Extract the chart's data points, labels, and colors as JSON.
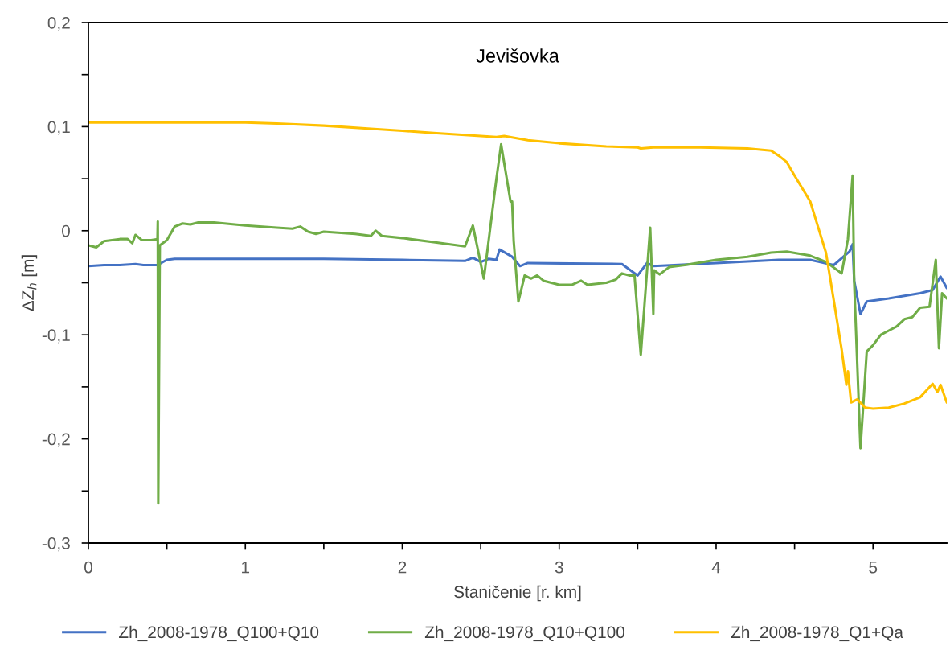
{
  "chart_data": {
    "type": "line",
    "title": "Jevišovka",
    "xlabel": "Staničenie [r. km]",
    "ylabel": "ΔZ$_{h}$ [m]",
    "xlim": [
      0,
      5.47
    ],
    "ylim": [
      -0.3,
      0.2
    ],
    "xticks": [
      0,
      {
        "value": 0.5,
        "label": null
      },
      1,
      {
        "value": 1.5,
        "label": null
      },
      2,
      {
        "value": 2.5,
        "label": null
      },
      3,
      {
        "value": 3.5,
        "label": null
      },
      4,
      {
        "value": 4.5,
        "label": null
      },
      5
    ],
    "yticks": [
      {
        "value": -0.3,
        "label": "-0,3"
      },
      {
        "value": -0.25,
        "label": null
      },
      {
        "value": -0.2,
        "label": "-0,2"
      },
      {
        "value": -0.15,
        "label": null
      },
      {
        "value": -0.1,
        "label": "-0,1"
      },
      {
        "value": -0.05,
        "label": null
      },
      0,
      {
        "value": 0.05,
        "label": null
      },
      {
        "value": 0.1,
        "label": "0,1"
      },
      {
        "value": 0.15,
        "label": null
      },
      {
        "value": 0.2,
        "label": "0,2"
      }
    ],
    "grid": false,
    "legend": "bottom",
    "marker": "none",
    "line_style": "solid",
    "series": [
      {
        "name": "Zh_2008-1978_Q100+Q10",
        "color": "#4472c4",
        "x": [
          0,
          0.1,
          0.2,
          0.3,
          0.35,
          0.44,
          0.5,
          0.55,
          1.0,
          1.5,
          2.0,
          2.4,
          2.45,
          2.5,
          2.55,
          2.6,
          2.62,
          2.7,
          2.75,
          2.8,
          3.4,
          3.5,
          3.56,
          3.6,
          4.0,
          4.4,
          4.6,
          4.75,
          4.85,
          4.87,
          4.88,
          4.92,
          4.96,
          5.1,
          5.3,
          5.38,
          5.43,
          5.47
        ],
        "values": [
          -0.034,
          -0.033,
          -0.033,
          -0.032,
          -0.033,
          -0.033,
          -0.028,
          -0.027,
          -0.027,
          -0.027,
          -0.028,
          -0.029,
          -0.026,
          -0.03,
          -0.027,
          -0.028,
          -0.018,
          -0.025,
          -0.034,
          -0.031,
          -0.032,
          -0.043,
          -0.031,
          -0.034,
          -0.031,
          -0.028,
          -0.028,
          -0.033,
          -0.02,
          -0.013,
          -0.048,
          -0.08,
          -0.068,
          -0.065,
          -0.06,
          -0.057,
          -0.044,
          -0.055
        ]
      },
      {
        "name": "Zh_2008-1978_Q10+Q100",
        "color": "#70ad47",
        "x": [
          0,
          0.05,
          0.1,
          0.2,
          0.25,
          0.28,
          0.3,
          0.34,
          0.4,
          0.44,
          0.442,
          0.445,
          0.455,
          0.5,
          0.55,
          0.6,
          0.65,
          0.7,
          0.8,
          1.0,
          1.2,
          1.3,
          1.35,
          1.4,
          1.45,
          1.5,
          1.7,
          1.8,
          1.83,
          1.87,
          2.0,
          2.2,
          2.4,
          2.45,
          2.52,
          2.6,
          2.63,
          2.69,
          2.7,
          2.71,
          2.74,
          2.78,
          2.82,
          2.86,
          2.9,
          3.0,
          3.08,
          3.14,
          3.18,
          3.3,
          3.36,
          3.4,
          3.45,
          3.48,
          3.52,
          3.58,
          3.6,
          3.605,
          3.64,
          3.7,
          3.8,
          4.0,
          4.2,
          4.35,
          4.45,
          4.6,
          4.7,
          4.8,
          4.84,
          4.87,
          4.88,
          4.92,
          4.96,
          5.0,
          5.05,
          5.1,
          5.15,
          5.2,
          5.25,
          5.3,
          5.36,
          5.4,
          5.42,
          5.44,
          5.47
        ],
        "values": [
          -0.014,
          -0.016,
          -0.01,
          -0.008,
          -0.008,
          -0.012,
          -0.004,
          -0.009,
          -0.009,
          -0.008,
          0.009,
          -0.262,
          -0.014,
          -0.009,
          0.004,
          0.007,
          0.006,
          0.008,
          0.008,
          0.005,
          0.003,
          0.002,
          0.004,
          -0.001,
          -0.003,
          -0.001,
          -0.003,
          -0.005,
          0.0,
          -0.005,
          -0.007,
          -0.011,
          -0.015,
          0.005,
          -0.046,
          0.05,
          0.083,
          0.028,
          0.028,
          -0.01,
          -0.068,
          -0.043,
          -0.046,
          -0.043,
          -0.048,
          -0.052,
          -0.052,
          -0.048,
          -0.052,
          -0.05,
          -0.047,
          -0.041,
          -0.043,
          -0.043,
          -0.119,
          0.003,
          -0.08,
          -0.038,
          -0.042,
          -0.035,
          -0.033,
          -0.028,
          -0.025,
          -0.021,
          -0.02,
          -0.024,
          -0.03,
          -0.041,
          -0.008,
          0.053,
          -0.05,
          -0.209,
          -0.116,
          -0.11,
          -0.1,
          -0.096,
          -0.092,
          -0.085,
          -0.083,
          -0.074,
          -0.073,
          -0.028,
          -0.113,
          -0.06,
          -0.065
        ]
      },
      {
        "name": "Zh_2008-1978_Q1+Qa",
        "color": "#ffc000",
        "x": [
          0,
          1.0,
          1.2,
          1.5,
          1.8,
          2.0,
          2.2,
          2.5,
          2.6,
          2.65,
          2.8,
          3.0,
          3.3,
          3.5,
          3.52,
          3.6,
          3.9,
          4.2,
          4.35,
          4.4,
          4.45,
          4.5,
          4.6,
          4.7,
          4.75,
          4.8,
          4.83,
          4.84,
          4.86,
          4.9,
          4.95,
          5.0,
          5.1,
          5.2,
          5.3,
          5.38,
          5.41,
          5.43,
          5.47
        ],
        "values": [
          0.104,
          0.104,
          0.103,
          0.101,
          0.098,
          0.096,
          0.094,
          0.091,
          0.09,
          0.091,
          0.087,
          0.084,
          0.081,
          0.08,
          0.079,
          0.08,
          0.08,
          0.079,
          0.077,
          0.072,
          0.066,
          0.053,
          0.028,
          -0.021,
          -0.067,
          -0.114,
          -0.148,
          -0.135,
          -0.165,
          -0.162,
          -0.17,
          -0.171,
          -0.17,
          -0.166,
          -0.16,
          -0.147,
          -0.155,
          -0.148,
          -0.165
        ]
      }
    ]
  }
}
